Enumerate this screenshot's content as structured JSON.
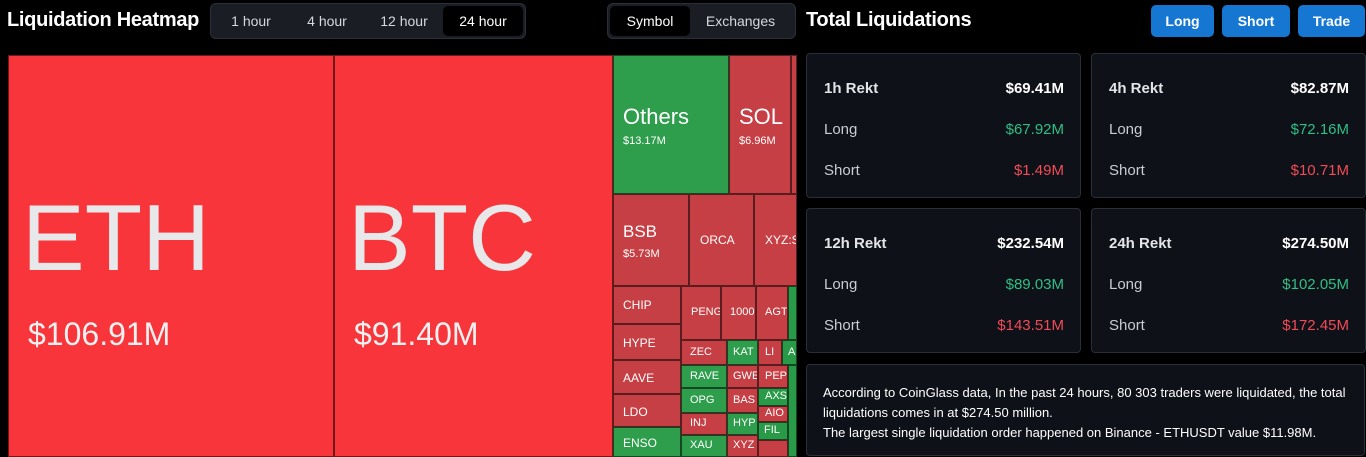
{
  "header": {
    "title": "Liquidation Heatmap",
    "time_tabs": [
      "1 hour",
      "4 hour",
      "12 hour",
      "24 hour"
    ],
    "active_time_tab": "24 hour",
    "view_tabs": [
      "Symbol",
      "Exchanges"
    ],
    "active_view_tab": "Symbol"
  },
  "heatmap": {
    "tiles": [
      {
        "symbol": "ETH",
        "value": "$106.91M"
      },
      {
        "symbol": "BTC",
        "value": "$91.40M"
      },
      {
        "symbol": "Others",
        "value": "$13.17M"
      },
      {
        "symbol": "SOL",
        "value": "$6.96M"
      },
      {
        "symbol": "BSB",
        "value": "$5.73M"
      },
      {
        "symbol": "ORCA",
        "value": ""
      },
      {
        "symbol": "XYZ:S",
        "value": ""
      },
      {
        "symbol": "CHIP",
        "value": ""
      },
      {
        "symbol": "HYPE",
        "value": ""
      },
      {
        "symbol": "AAVE",
        "value": ""
      },
      {
        "symbol": "LDO",
        "value": ""
      },
      {
        "symbol": "ENSO",
        "value": ""
      },
      {
        "symbol": "PENG",
        "value": ""
      },
      {
        "symbol": "1000",
        "value": ""
      },
      {
        "symbol": "AGT",
        "value": ""
      },
      {
        "symbol": "ZEC",
        "value": ""
      },
      {
        "symbol": "KAT",
        "value": ""
      },
      {
        "symbol": "LI",
        "value": ""
      },
      {
        "symbol": "A",
        "value": ""
      },
      {
        "symbol": "RAVE",
        "value": ""
      },
      {
        "symbol": "GWE",
        "value": ""
      },
      {
        "symbol": "PEP",
        "value": ""
      },
      {
        "symbol": "AXS",
        "value": ""
      },
      {
        "symbol": "OPG",
        "value": ""
      },
      {
        "symbol": "BAS",
        "value": ""
      },
      {
        "symbol": "AIO",
        "value": ""
      },
      {
        "symbol": "INJ",
        "value": ""
      },
      {
        "symbol": "HYP",
        "value": ""
      },
      {
        "symbol": "FIL",
        "value": ""
      },
      {
        "symbol": "XAU",
        "value": ""
      },
      {
        "symbol": "XYZ",
        "value": ""
      },
      {
        "symbol": "",
        "value": ""
      }
    ]
  },
  "panel": {
    "title": "Total Liquidations",
    "buttons": [
      "Long",
      "Short",
      "Trade"
    ],
    "cards": [
      {
        "label": "1h Rekt",
        "total": "$69.41M",
        "long_label": "Long",
        "long": "$67.92M",
        "short_label": "Short",
        "short": "$1.49M"
      },
      {
        "label": "4h Rekt",
        "total": "$82.87M",
        "long_label": "Long",
        "long": "$72.16M",
        "short_label": "Short",
        "short": "$10.71M"
      },
      {
        "label": "12h Rekt",
        "total": "$232.54M",
        "long_label": "Long",
        "long": "$89.03M",
        "short_label": "Short",
        "short": "$143.51M"
      },
      {
        "label": "24h Rekt",
        "total": "$274.50M",
        "long_label": "Long",
        "long": "$102.05M",
        "short_label": "Short",
        "short": "$172.45M"
      }
    ],
    "summary_line1": "According to CoinGlass data, In the past 24 hours, 80 303 traders were liquidated, the total liquidations comes in at $274.50 million.",
    "summary_line2": "The largest single liquidation order happened on Binance - ETHUSDT value $11.98M."
  },
  "colors": {
    "short_red": "#f7353a",
    "short_red_dark": "#c53f45",
    "long_green": "#2e9e4c",
    "accent_blue": "#1677d2"
  }
}
